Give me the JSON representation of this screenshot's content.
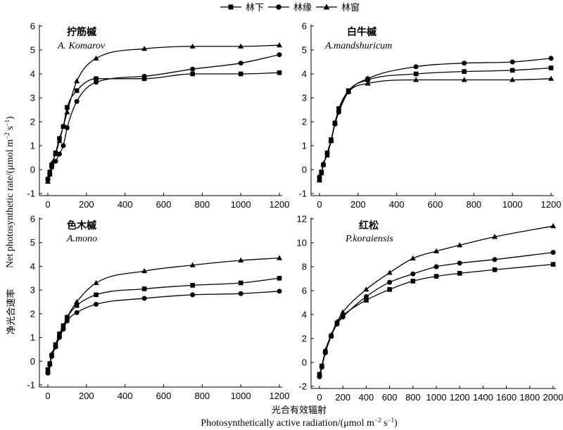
{
  "legend": {
    "entries": [
      {
        "label": "林下",
        "marker": "square"
      },
      {
        "label": "林缘",
        "marker": "circle"
      },
      {
        "label": "林窗",
        "marker": "triangle"
      }
    ]
  },
  "axis_labels": {
    "x_cn": "光合有效辐射",
    "x_en": "Photosynthetically active radiation/(μmol m",
    "x_unit_sup1": "−2",
    "x_unit_mid": " s",
    "x_unit_sup2": "−1",
    "x_unit_end": ")",
    "y_cn": "净光合速率",
    "y_en": "Net photosynthetic rate/(μmol m",
    "y_unit_sup1": "−2",
    "y_unit_mid": " s",
    "y_unit_sup2": "−1",
    "y_unit_end": ")"
  },
  "chart_data": [
    {
      "type": "line",
      "title": "拧筋槭",
      "subtitle": "A. Komarov",
      "xlim": [
        0,
        1200
      ],
      "ylim": [
        -1,
        6
      ],
      "xticks": [
        0,
        200,
        400,
        600,
        800,
        1000,
        1200
      ],
      "yticks": [
        -1,
        0,
        1,
        2,
        3,
        4,
        5,
        6
      ],
      "series": [
        {
          "name": "林下",
          "marker": "square",
          "x": [
            0,
            10,
            20,
            40,
            60,
            80,
            100,
            150,
            250,
            500,
            750,
            1000,
            1200
          ],
          "y": [
            -0.4,
            -0.1,
            0.2,
            0.7,
            1.3,
            1.8,
            2.6,
            3.3,
            3.8,
            3.8,
            4.0,
            4.0,
            4.05
          ]
        },
        {
          "name": "林缘",
          "marker": "circle",
          "x": [
            0,
            10,
            20,
            40,
            60,
            80,
            100,
            150,
            250,
            500,
            750,
            1000,
            1200
          ],
          "y": [
            -0.4,
            -0.2,
            0.1,
            0.35,
            0.65,
            1.0,
            1.75,
            2.85,
            3.65,
            3.9,
            4.2,
            4.45,
            4.8
          ]
        },
        {
          "name": "林窗",
          "marker": "triangle",
          "x": [
            0,
            10,
            20,
            40,
            60,
            80,
            100,
            150,
            250,
            500,
            750,
            1000,
            1200
          ],
          "y": [
            -0.5,
            -0.2,
            0.25,
            0.65,
            1.2,
            1.8,
            2.4,
            3.7,
            4.65,
            5.05,
            5.15,
            5.15,
            5.2
          ]
        }
      ]
    },
    {
      "type": "line",
      "title": "白牛槭",
      "subtitle": "A.mandshuricum",
      "xlim": [
        0,
        1200
      ],
      "ylim": [
        -1,
        6
      ],
      "xticks": [
        0,
        200,
        400,
        600,
        800,
        1000,
        1200
      ],
      "yticks": [
        -1,
        0,
        1,
        2,
        3,
        4,
        5,
        6
      ],
      "series": [
        {
          "name": "林下",
          "marker": "square",
          "x": [
            0,
            10,
            20,
            40,
            60,
            80,
            100,
            150,
            250,
            500,
            750,
            1000,
            1200
          ],
          "y": [
            -0.4,
            -0.1,
            0.2,
            0.7,
            1.25,
            1.95,
            2.55,
            3.3,
            3.75,
            4.0,
            4.1,
            4.15,
            4.25
          ]
        },
        {
          "name": "林缘",
          "marker": "circle",
          "x": [
            0,
            10,
            20,
            40,
            60,
            80,
            100,
            150,
            250,
            500,
            750,
            1000,
            1200
          ],
          "y": [
            -0.3,
            -0.1,
            0.2,
            0.65,
            1.2,
            1.9,
            2.4,
            3.25,
            3.8,
            4.3,
            4.45,
            4.5,
            4.65
          ]
        },
        {
          "name": "林窗",
          "marker": "triangle",
          "x": [
            0,
            10,
            20,
            40,
            60,
            80,
            100,
            150,
            250,
            500,
            750,
            1000,
            1200
          ],
          "y": [
            -0.45,
            -0.15,
            0.25,
            0.6,
            1.2,
            1.95,
            2.5,
            3.25,
            3.6,
            3.75,
            3.75,
            3.75,
            3.8
          ]
        }
      ]
    },
    {
      "type": "line",
      "title": "色木槭",
      "subtitle": "A.mono",
      "xlim": [
        0,
        1200
      ],
      "ylim": [
        -1,
        6
      ],
      "xticks": [
        0,
        200,
        400,
        600,
        800,
        1000,
        1200
      ],
      "yticks": [
        -1,
        0,
        1,
        2,
        3,
        4,
        5,
        6
      ],
      "series": [
        {
          "name": "林下",
          "marker": "square",
          "x": [
            0,
            10,
            20,
            40,
            60,
            80,
            100,
            150,
            250,
            500,
            750,
            1000,
            1200
          ],
          "y": [
            -0.35,
            -0.1,
            0.25,
            0.7,
            1.15,
            1.5,
            1.85,
            2.35,
            2.8,
            3.05,
            3.2,
            3.3,
            3.5
          ]
        },
        {
          "name": "林缘",
          "marker": "circle",
          "x": [
            0,
            10,
            20,
            40,
            60,
            80,
            100,
            150,
            250,
            500,
            750,
            1000,
            1200
          ],
          "y": [
            -0.5,
            -0.15,
            0.2,
            0.6,
            1.0,
            1.35,
            1.7,
            2.05,
            2.4,
            2.65,
            2.8,
            2.85,
            2.95
          ]
        },
        {
          "name": "林窗",
          "marker": "triangle",
          "x": [
            0,
            10,
            20,
            40,
            60,
            80,
            100,
            150,
            250,
            500,
            750,
            1000,
            1200
          ],
          "y": [
            -0.4,
            -0.1,
            0.3,
            0.65,
            1.1,
            1.45,
            1.85,
            2.5,
            3.3,
            3.8,
            4.05,
            4.25,
            4.35
          ]
        }
      ]
    },
    {
      "type": "line",
      "title": "红松",
      "subtitle": "P.koraiensis",
      "xlim": [
        0,
        2000
      ],
      "ylim": [
        -2,
        12
      ],
      "xticks": [
        0,
        200,
        400,
        600,
        800,
        1000,
        1200,
        1400,
        1600,
        1800,
        2000
      ],
      "yticks": [
        -2,
        0,
        2,
        4,
        6,
        8,
        10,
        12
      ],
      "series": [
        {
          "name": "林下",
          "marker": "square",
          "x": [
            0,
            20,
            50,
            100,
            150,
            200,
            400,
            600,
            800,
            1000,
            1200,
            1500,
            2000
          ],
          "y": [
            -1.0,
            -0.3,
            0.9,
            2.2,
            3.3,
            3.9,
            5.2,
            6.1,
            6.8,
            7.2,
            7.45,
            7.75,
            8.2
          ]
        },
        {
          "name": "林缘",
          "marker": "circle",
          "x": [
            0,
            20,
            50,
            100,
            150,
            200,
            400,
            600,
            800,
            1000,
            1200,
            1500,
            2000
          ],
          "y": [
            -1.2,
            -0.4,
            0.8,
            2.2,
            3.2,
            3.8,
            5.5,
            6.7,
            7.4,
            8.0,
            8.3,
            8.6,
            9.2
          ]
        },
        {
          "name": "林窗",
          "marker": "triangle",
          "x": [
            0,
            20,
            50,
            100,
            150,
            200,
            400,
            600,
            800,
            1000,
            1200,
            1500,
            2000
          ],
          "y": [
            -1.0,
            -0.3,
            1.0,
            2.3,
            3.4,
            4.2,
            6.1,
            7.5,
            8.7,
            9.3,
            9.8,
            10.5,
            11.4
          ]
        }
      ]
    }
  ]
}
